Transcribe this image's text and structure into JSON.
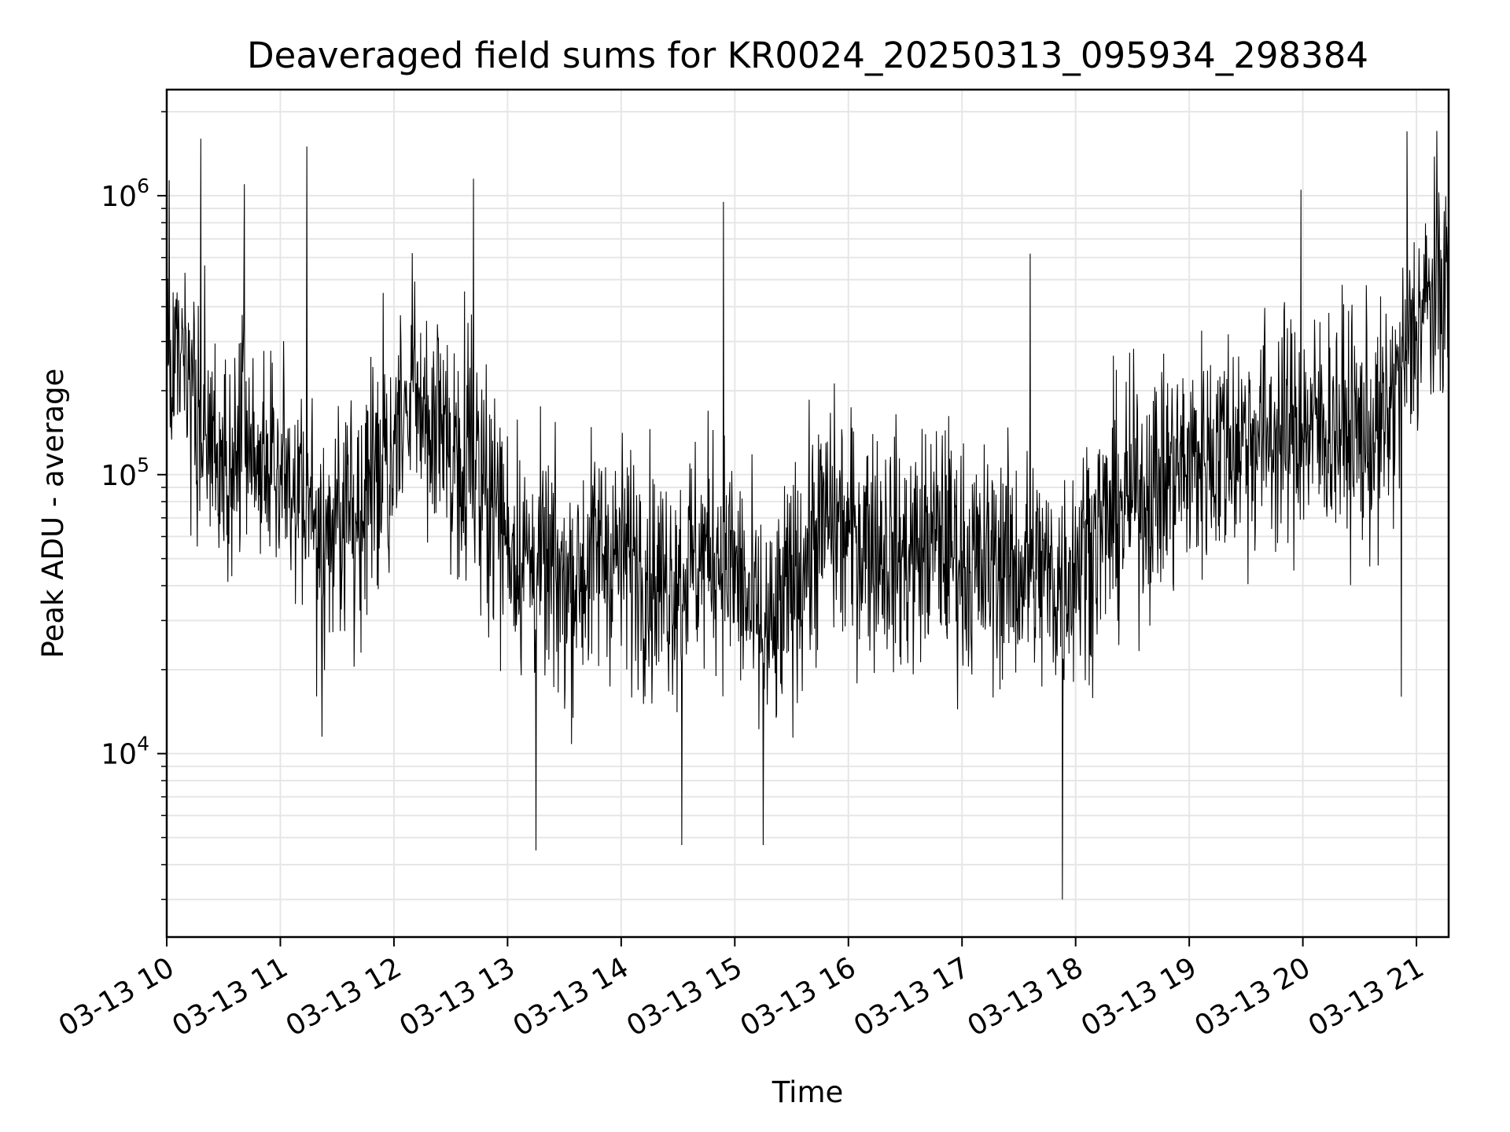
{
  "chart_data": {
    "type": "line",
    "title": "Deaveraged field sums for KR0024_20250313_095934_298384",
    "xlabel": "Time",
    "ylabel": "Peak ADU - average",
    "yscale": "log",
    "ylim": [
      2200,
      2400000
    ],
    "xlim": [
      "2025-03-13T10:00",
      "2025-03-13T21:17"
    ],
    "grid": true,
    "line_color": "#000000",
    "grid_color": "#e6e6e6",
    "x_ticks": [
      {
        "value": "2025-03-13T10:00",
        "label": "03-13 10"
      },
      {
        "value": "2025-03-13T11:00",
        "label": "03-13 11"
      },
      {
        "value": "2025-03-13T12:00",
        "label": "03-13 12"
      },
      {
        "value": "2025-03-13T13:00",
        "label": "03-13 13"
      },
      {
        "value": "2025-03-13T14:00",
        "label": "03-13 14"
      },
      {
        "value": "2025-03-13T15:00",
        "label": "03-13 15"
      },
      {
        "value": "2025-03-13T16:00",
        "label": "03-13 16"
      },
      {
        "value": "2025-03-13T17:00",
        "label": "03-13 17"
      },
      {
        "value": "2025-03-13T18:00",
        "label": "03-13 18"
      },
      {
        "value": "2025-03-13T19:00",
        "label": "03-13 19"
      },
      {
        "value": "2025-03-13T20:00",
        "label": "03-13 20"
      },
      {
        "value": "2025-03-13T21:00",
        "label": "03-13 21"
      }
    ],
    "y_ticks": [
      {
        "value": 10000,
        "base": "10",
        "exp": "4"
      },
      {
        "value": 100000,
        "base": "10",
        "exp": "5"
      },
      {
        "value": 1000000,
        "base": "10",
        "exp": "6"
      }
    ],
    "series": [
      {
        "x": [
          "2025-03-13T10:00",
          "2025-03-13T10:10",
          "2025-03-13T10:20",
          "2025-03-13T10:30",
          "2025-03-13T10:40",
          "2025-03-13T10:50",
          "2025-03-13T11:00",
          "2025-03-13T11:10",
          "2025-03-13T11:20",
          "2025-03-13T11:30",
          "2025-03-13T11:40",
          "2025-03-13T11:50",
          "2025-03-13T12:00",
          "2025-03-13T12:10",
          "2025-03-13T12:20",
          "2025-03-13T12:30",
          "2025-03-13T12:40",
          "2025-03-13T12:50",
          "2025-03-13T13:00",
          "2025-03-13T13:10",
          "2025-03-13T13:20",
          "2025-03-13T13:30",
          "2025-03-13T13:40",
          "2025-03-13T13:50",
          "2025-03-13T14:00",
          "2025-03-13T14:10",
          "2025-03-13T14:20",
          "2025-03-13T14:30",
          "2025-03-13T14:40",
          "2025-03-13T14:50",
          "2025-03-13T15:00",
          "2025-03-13T15:10",
          "2025-03-13T15:20",
          "2025-03-13T15:30",
          "2025-03-13T15:40",
          "2025-03-13T15:50",
          "2025-03-13T16:00",
          "2025-03-13T16:10",
          "2025-03-13T16:20",
          "2025-03-13T16:30",
          "2025-03-13T16:40",
          "2025-03-13T16:50",
          "2025-03-13T17:00",
          "2025-03-13T17:10",
          "2025-03-13T17:20",
          "2025-03-13T17:30",
          "2025-03-13T17:40",
          "2025-03-13T17:50",
          "2025-03-13T18:00",
          "2025-03-13T18:10",
          "2025-03-13T18:20",
          "2025-03-13T18:30",
          "2025-03-13T18:40",
          "2025-03-13T18:50",
          "2025-03-13T19:00",
          "2025-03-13T19:10",
          "2025-03-13T19:20",
          "2025-03-13T19:30",
          "2025-03-13T19:40",
          "2025-03-13T19:50",
          "2025-03-13T20:00",
          "2025-03-13T20:10",
          "2025-03-13T20:20",
          "2025-03-13T20:30",
          "2025-03-13T20:40",
          "2025-03-13T20:50",
          "2025-03-13T21:00",
          "2025-03-13T21:10",
          "2025-03-13T21:17"
        ],
        "y": [
          300000,
          200000,
          150000,
          90000,
          130000,
          110000,
          110000,
          90000,
          60000,
          70000,
          80000,
          90000,
          120000,
          200000,
          150000,
          120000,
          130000,
          90000,
          60000,
          50000,
          45000,
          40000,
          45000,
          55000,
          50000,
          50000,
          40000,
          45000,
          50000,
          55000,
          45000,
          30000,
          25000,
          40000,
          55000,
          70000,
          60000,
          60000,
          55000,
          50000,
          55000,
          60000,
          50000,
          45000,
          50000,
          45000,
          45000,
          40000,
          50000,
          60000,
          70000,
          85000,
          90000,
          100000,
          110000,
          120000,
          130000,
          135000,
          140000,
          140000,
          145000,
          150000,
          150000,
          140000,
          135000,
          200000,
          350000,
          450000,
          500000
        ],
        "spikes_up": [
          {
            "x": "2025-03-13T10:18",
            "y": 1600000
          },
          {
            "x": "2025-03-13T10:41",
            "y": 1100000
          },
          {
            "x": "2025-03-13T11:14",
            "y": 1500000
          },
          {
            "x": "2025-03-13T12:42",
            "y": 1150000
          },
          {
            "x": "2025-03-13T14:54",
            "y": 950000
          },
          {
            "x": "2025-03-13T17:36",
            "y": 620000
          },
          {
            "x": "2025-03-13T19:59",
            "y": 1050000
          },
          {
            "x": "2025-03-13T20:55",
            "y": 1700000
          }
        ],
        "spikes_down": [
          {
            "x": "2025-03-13T11:22",
            "y": 11500
          },
          {
            "x": "2025-03-13T13:15",
            "y": 4500
          },
          {
            "x": "2025-03-13T14:32",
            "y": 4700
          },
          {
            "x": "2025-03-13T15:15",
            "y": 4700
          },
          {
            "x": "2025-03-13T17:53",
            "y": 3000
          },
          {
            "x": "2025-03-13T20:52",
            "y": 16000
          }
        ]
      }
    ]
  }
}
